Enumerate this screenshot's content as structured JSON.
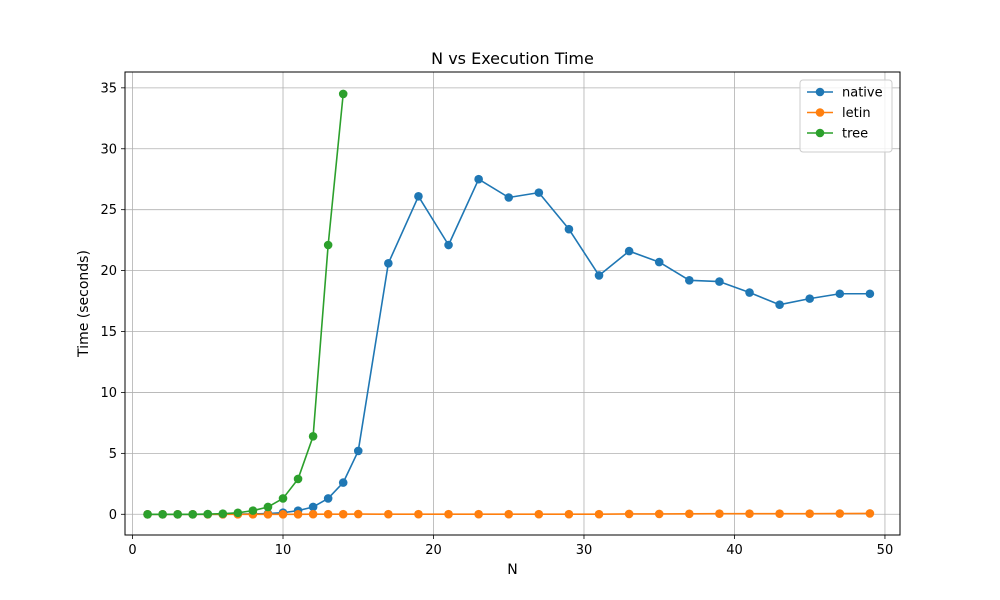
{
  "chart_data": {
    "type": "line",
    "title": "N vs Execution Time",
    "xlabel": "N",
    "ylabel": "Time (seconds)",
    "xlim": [
      -0.5,
      51
    ],
    "ylim": [
      -1.7,
      36.3
    ],
    "xticks": [
      0,
      10,
      20,
      30,
      40,
      50
    ],
    "yticks": [
      0,
      5,
      10,
      15,
      20,
      25,
      30,
      35
    ],
    "grid": true,
    "legend_position": "top-right",
    "series": [
      {
        "name": "native",
        "color": "#1f77b4",
        "x": [
          1,
          2,
          3,
          4,
          5,
          6,
          7,
          8,
          9,
          10,
          11,
          12,
          13,
          14,
          15,
          17,
          19,
          21,
          23,
          25,
          27,
          29,
          31,
          33,
          35,
          37,
          39,
          41,
          43,
          45,
          47,
          49
        ],
        "y": [
          0,
          0,
          0,
          0,
          0,
          0,
          0.02,
          0.03,
          0.06,
          0.13,
          0.3,
          0.6,
          1.3,
          2.6,
          5.2,
          20.6,
          26.1,
          22.1,
          27.5,
          26.0,
          26.4,
          23.4,
          19.6,
          21.6,
          20.7,
          19.2,
          19.1,
          18.2,
          17.2,
          17.7,
          18.1,
          18.1
        ]
      },
      {
        "name": "letin",
        "color": "#ff7f0e",
        "x": [
          1,
          2,
          3,
          4,
          5,
          6,
          7,
          8,
          9,
          10,
          11,
          12,
          13,
          14,
          15,
          17,
          19,
          21,
          23,
          25,
          27,
          29,
          31,
          33,
          35,
          37,
          39,
          41,
          43,
          45,
          47,
          49
        ],
        "y": [
          0,
          0,
          0,
          0,
          0,
          0,
          0,
          0,
          0,
          0,
          0,
          0.01,
          0.01,
          0.01,
          0.02,
          0.01,
          0.01,
          0.01,
          0.01,
          0.01,
          0.01,
          0.01,
          0.01,
          0.03,
          0.03,
          0.04,
          0.05,
          0.05,
          0.05,
          0.05,
          0.06,
          0.07
        ]
      },
      {
        "name": "tree",
        "color": "#2ca02c",
        "x": [
          1,
          2,
          3,
          4,
          5,
          6,
          7,
          8,
          9,
          10,
          11,
          12,
          13,
          14
        ],
        "y": [
          0,
          0,
          0,
          0,
          0.02,
          0.05,
          0.12,
          0.3,
          0.6,
          1.3,
          2.9,
          6.4,
          22.1,
          34.5
        ]
      }
    ]
  }
}
